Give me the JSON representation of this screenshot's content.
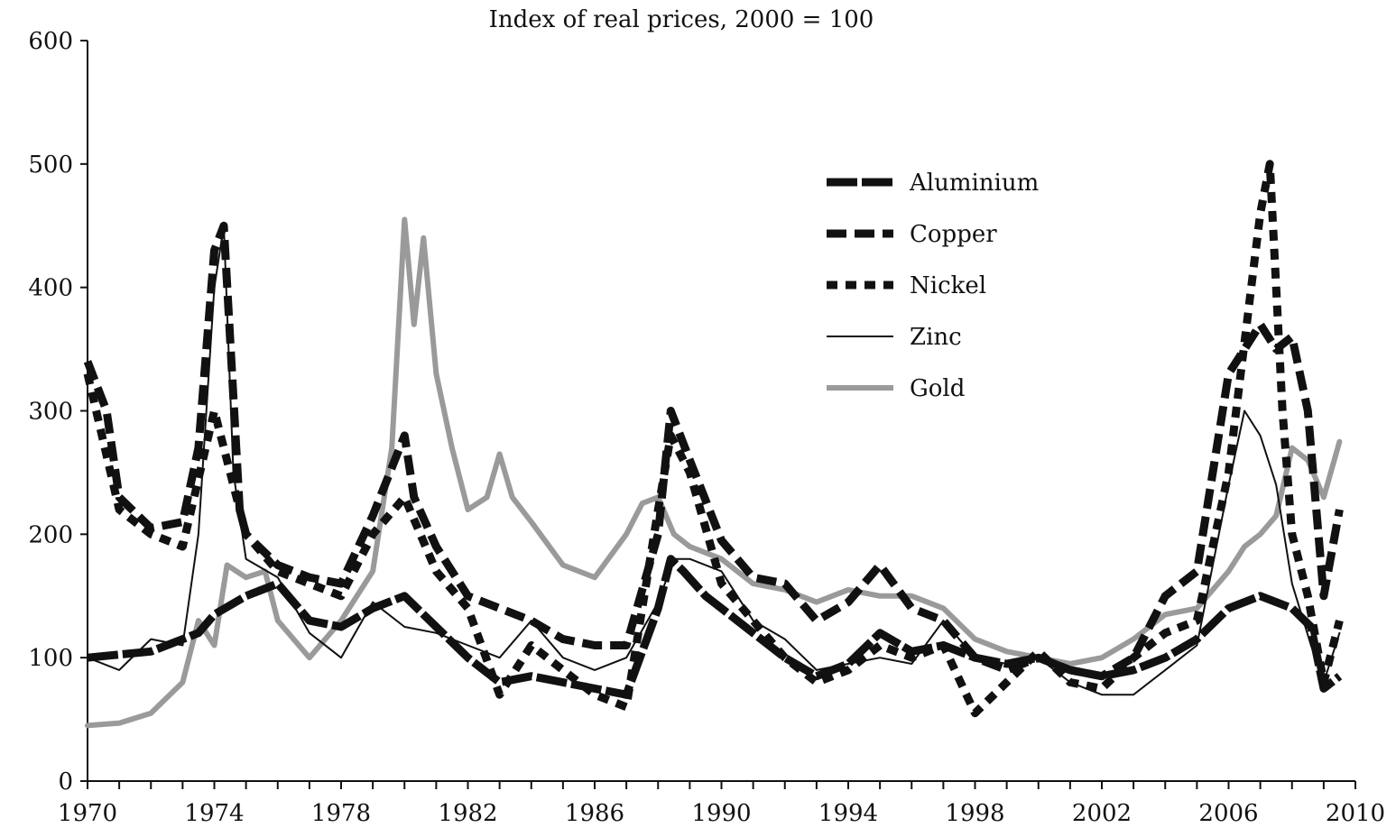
{
  "chart_data": {
    "type": "line",
    "title": "Index of real prices, 2000 = 100",
    "xlabel": "",
    "ylabel": "",
    "xlim": [
      1970,
      2010
    ],
    "ylim": [
      0,
      600
    ],
    "x_ticks": [
      1970,
      1974,
      1978,
      1982,
      1986,
      1990,
      1994,
      1998,
      2002,
      2006,
      2010
    ],
    "y_ticks": [
      0,
      100,
      200,
      300,
      400,
      500,
      600
    ],
    "legend_position": "top-right",
    "series": [
      {
        "name": "Aluminium",
        "color": "#111111",
        "style": "thick-dash-long",
        "points": [
          [
            1970,
            100
          ],
          [
            1972,
            105
          ],
          [
            1973.5,
            120
          ],
          [
            1974,
            135
          ],
          [
            1975,
            150
          ],
          [
            1976,
            160
          ],
          [
            1977,
            130
          ],
          [
            1978,
            125
          ],
          [
            1979,
            140
          ],
          [
            1980,
            150
          ],
          [
            1981,
            125
          ],
          [
            1982,
            100
          ],
          [
            1983,
            80
          ],
          [
            1984,
            85
          ],
          [
            1985,
            80
          ],
          [
            1986,
            75
          ],
          [
            1987,
            70
          ],
          [
            1988,
            140
          ],
          [
            1988.4,
            180
          ],
          [
            1988.8,
            170
          ],
          [
            1989.5,
            150
          ],
          [
            1990,
            140
          ],
          [
            1991,
            120
          ],
          [
            1992,
            100
          ],
          [
            1993,
            85
          ],
          [
            1994,
            95
          ],
          [
            1995,
            120
          ],
          [
            1996,
            105
          ],
          [
            1997,
            110
          ],
          [
            1998,
            100
          ],
          [
            1999,
            95
          ],
          [
            2000,
            100
          ],
          [
            2001,
            90
          ],
          [
            2002,
            85
          ],
          [
            2003,
            90
          ],
          [
            2004,
            100
          ],
          [
            2005,
            115
          ],
          [
            2006,
            140
          ],
          [
            2007,
            150
          ],
          [
            2008,
            140
          ],
          [
            2008.6,
            125
          ],
          [
            2009,
            75
          ],
          [
            2009.5,
            85
          ]
        ]
      },
      {
        "name": "Copper",
        "color": "#111111",
        "style": "thick-dash-medium",
        "points": [
          [
            1970,
            340
          ],
          [
            1970.6,
            300
          ],
          [
            1971,
            230
          ],
          [
            1972,
            205
          ],
          [
            1973,
            210
          ],
          [
            1973.5,
            270
          ],
          [
            1974,
            430
          ],
          [
            1974.3,
            450
          ],
          [
            1974.8,
            220
          ],
          [
            1975,
            200
          ],
          [
            1976,
            175
          ],
          [
            1977,
            165
          ],
          [
            1978,
            160
          ],
          [
            1979,
            215
          ],
          [
            1980,
            280
          ],
          [
            1980.3,
            230
          ],
          [
            1981,
            190
          ],
          [
            1982,
            150
          ],
          [
            1983,
            140
          ],
          [
            1984,
            130
          ],
          [
            1985,
            115
          ],
          [
            1986,
            110
          ],
          [
            1987,
            110
          ],
          [
            1988,
            200
          ],
          [
            1988.4,
            300
          ],
          [
            1989,
            260
          ],
          [
            1990,
            195
          ],
          [
            1991,
            165
          ],
          [
            1992,
            160
          ],
          [
            1993,
            130
          ],
          [
            1994,
            145
          ],
          [
            1995,
            175
          ],
          [
            1996,
            140
          ],
          [
            1997,
            130
          ],
          [
            1998,
            100
          ],
          [
            1999,
            90
          ],
          [
            2000,
            100
          ],
          [
            2001,
            90
          ],
          [
            2002,
            85
          ],
          [
            2003,
            100
          ],
          [
            2004,
            150
          ],
          [
            2005,
            170
          ],
          [
            2006,
            330
          ],
          [
            2006.5,
            350
          ],
          [
            2007,
            370
          ],
          [
            2007.5,
            350
          ],
          [
            2008,
            360
          ],
          [
            2008.5,
            300
          ],
          [
            2009,
            150
          ],
          [
            2009.5,
            220
          ]
        ]
      },
      {
        "name": "Nickel",
        "color": "#111111",
        "style": "thick-dash-short",
        "points": [
          [
            1970,
            330
          ],
          [
            1971,
            220
          ],
          [
            1972,
            200
          ],
          [
            1973,
            190
          ],
          [
            1974,
            300
          ],
          [
            1975,
            200
          ],
          [
            1976,
            170
          ],
          [
            1977,
            160
          ],
          [
            1978,
            150
          ],
          [
            1979,
            200
          ],
          [
            1980,
            230
          ],
          [
            1980.5,
            200
          ],
          [
            1981,
            170
          ],
          [
            1982,
            140
          ],
          [
            1983,
            70
          ],
          [
            1984,
            110
          ],
          [
            1985,
            90
          ],
          [
            1986,
            70
          ],
          [
            1987,
            60
          ],
          [
            1988,
            220
          ],
          [
            1988.4,
            280
          ],
          [
            1989,
            250
          ],
          [
            1990,
            160
          ],
          [
            1991,
            130
          ],
          [
            1992,
            100
          ],
          [
            1993,
            80
          ],
          [
            1994,
            90
          ],
          [
            1995,
            110
          ],
          [
            1996,
            100
          ],
          [
            1997,
            110
          ],
          [
            1998,
            55
          ],
          [
            1999,
            80
          ],
          [
            2000,
            105
          ],
          [
            2001,
            80
          ],
          [
            2002,
            75
          ],
          [
            2003,
            100
          ],
          [
            2004,
            120
          ],
          [
            2005,
            130
          ],
          [
            2006,
            250
          ],
          [
            2007,
            460
          ],
          [
            2007.3,
            500
          ],
          [
            2007.7,
            300
          ],
          [
            2008,
            200
          ],
          [
            2008.5,
            150
          ],
          [
            2009,
            80
          ],
          [
            2009.5,
            130
          ]
        ]
      },
      {
        "name": "Zinc",
        "color": "#111111",
        "style": "thin",
        "points": [
          [
            1970,
            100
          ],
          [
            1971,
            90
          ],
          [
            1972,
            115
          ],
          [
            1973,
            110
          ],
          [
            1973.5,
            200
          ],
          [
            1974,
            400
          ],
          [
            1974.3,
            450
          ],
          [
            1974.6,
            250
          ],
          [
            1975,
            180
          ],
          [
            1976,
            165
          ],
          [
            1977,
            120
          ],
          [
            1978,
            100
          ],
          [
            1979,
            145
          ],
          [
            1980,
            125
          ],
          [
            1981,
            120
          ],
          [
            1982,
            110
          ],
          [
            1983,
            100
          ],
          [
            1984,
            130
          ],
          [
            1985,
            100
          ],
          [
            1986,
            90
          ],
          [
            1987,
            100
          ],
          [
            1988,
            145
          ],
          [
            1988.5,
            180
          ],
          [
            1989,
            180
          ],
          [
            1990,
            170
          ],
          [
            1991,
            130
          ],
          [
            1992,
            115
          ],
          [
            1993,
            90
          ],
          [
            1994,
            95
          ],
          [
            1995,
            100
          ],
          [
            1996,
            95
          ],
          [
            1997,
            130
          ],
          [
            1998,
            100
          ],
          [
            1999,
            95
          ],
          [
            2000,
            100
          ],
          [
            2001,
            80
          ],
          [
            2002,
            70
          ],
          [
            2003,
            70
          ],
          [
            2004,
            90
          ],
          [
            2005,
            110
          ],
          [
            2006,
            240
          ],
          [
            2006.5,
            300
          ],
          [
            2007,
            280
          ],
          [
            2007.5,
            240
          ],
          [
            2008,
            160
          ],
          [
            2008.6,
            110
          ],
          [
            2009,
            80
          ],
          [
            2009.5,
            120
          ]
        ]
      },
      {
        "name": "Gold",
        "color": "#9a9a9a",
        "style": "thick-solid",
        "points": [
          [
            1970,
            45
          ],
          [
            1971,
            47
          ],
          [
            1972,
            55
          ],
          [
            1973,
            80
          ],
          [
            1973.5,
            130
          ],
          [
            1974,
            110
          ],
          [
            1974.4,
            175
          ],
          [
            1975,
            165
          ],
          [
            1975.6,
            170
          ],
          [
            1976,
            130
          ],
          [
            1977,
            100
          ],
          [
            1978,
            130
          ],
          [
            1979,
            170
          ],
          [
            1979.6,
            270
          ],
          [
            1980,
            455
          ],
          [
            1980.3,
            370
          ],
          [
            1980.6,
            440
          ],
          [
            1981,
            330
          ],
          [
            1981.5,
            270
          ],
          [
            1982,
            220
          ],
          [
            1982.6,
            230
          ],
          [
            1983,
            265
          ],
          [
            1983.4,
            230
          ],
          [
            1984,
            210
          ],
          [
            1985,
            175
          ],
          [
            1986,
            165
          ],
          [
            1987,
            200
          ],
          [
            1987.5,
            225
          ],
          [
            1988,
            230
          ],
          [
            1988.5,
            200
          ],
          [
            1989,
            190
          ],
          [
            1990,
            180
          ],
          [
            1991,
            160
          ],
          [
            1992,
            155
          ],
          [
            1993,
            145
          ],
          [
            1994,
            155
          ],
          [
            1995,
            150
          ],
          [
            1996,
            150
          ],
          [
            1997,
            140
          ],
          [
            1998,
            115
          ],
          [
            1999,
            105
          ],
          [
            2000,
            100
          ],
          [
            2001,
            95
          ],
          [
            2002,
            100
          ],
          [
            2003,
            115
          ],
          [
            2004,
            135
          ],
          [
            2005,
            140
          ],
          [
            2006,
            170
          ],
          [
            2006.5,
            190
          ],
          [
            2007,
            200
          ],
          [
            2007.5,
            215
          ],
          [
            2008,
            270
          ],
          [
            2008.5,
            260
          ],
          [
            2009,
            230
          ],
          [
            2009.5,
            275
          ]
        ]
      }
    ]
  }
}
